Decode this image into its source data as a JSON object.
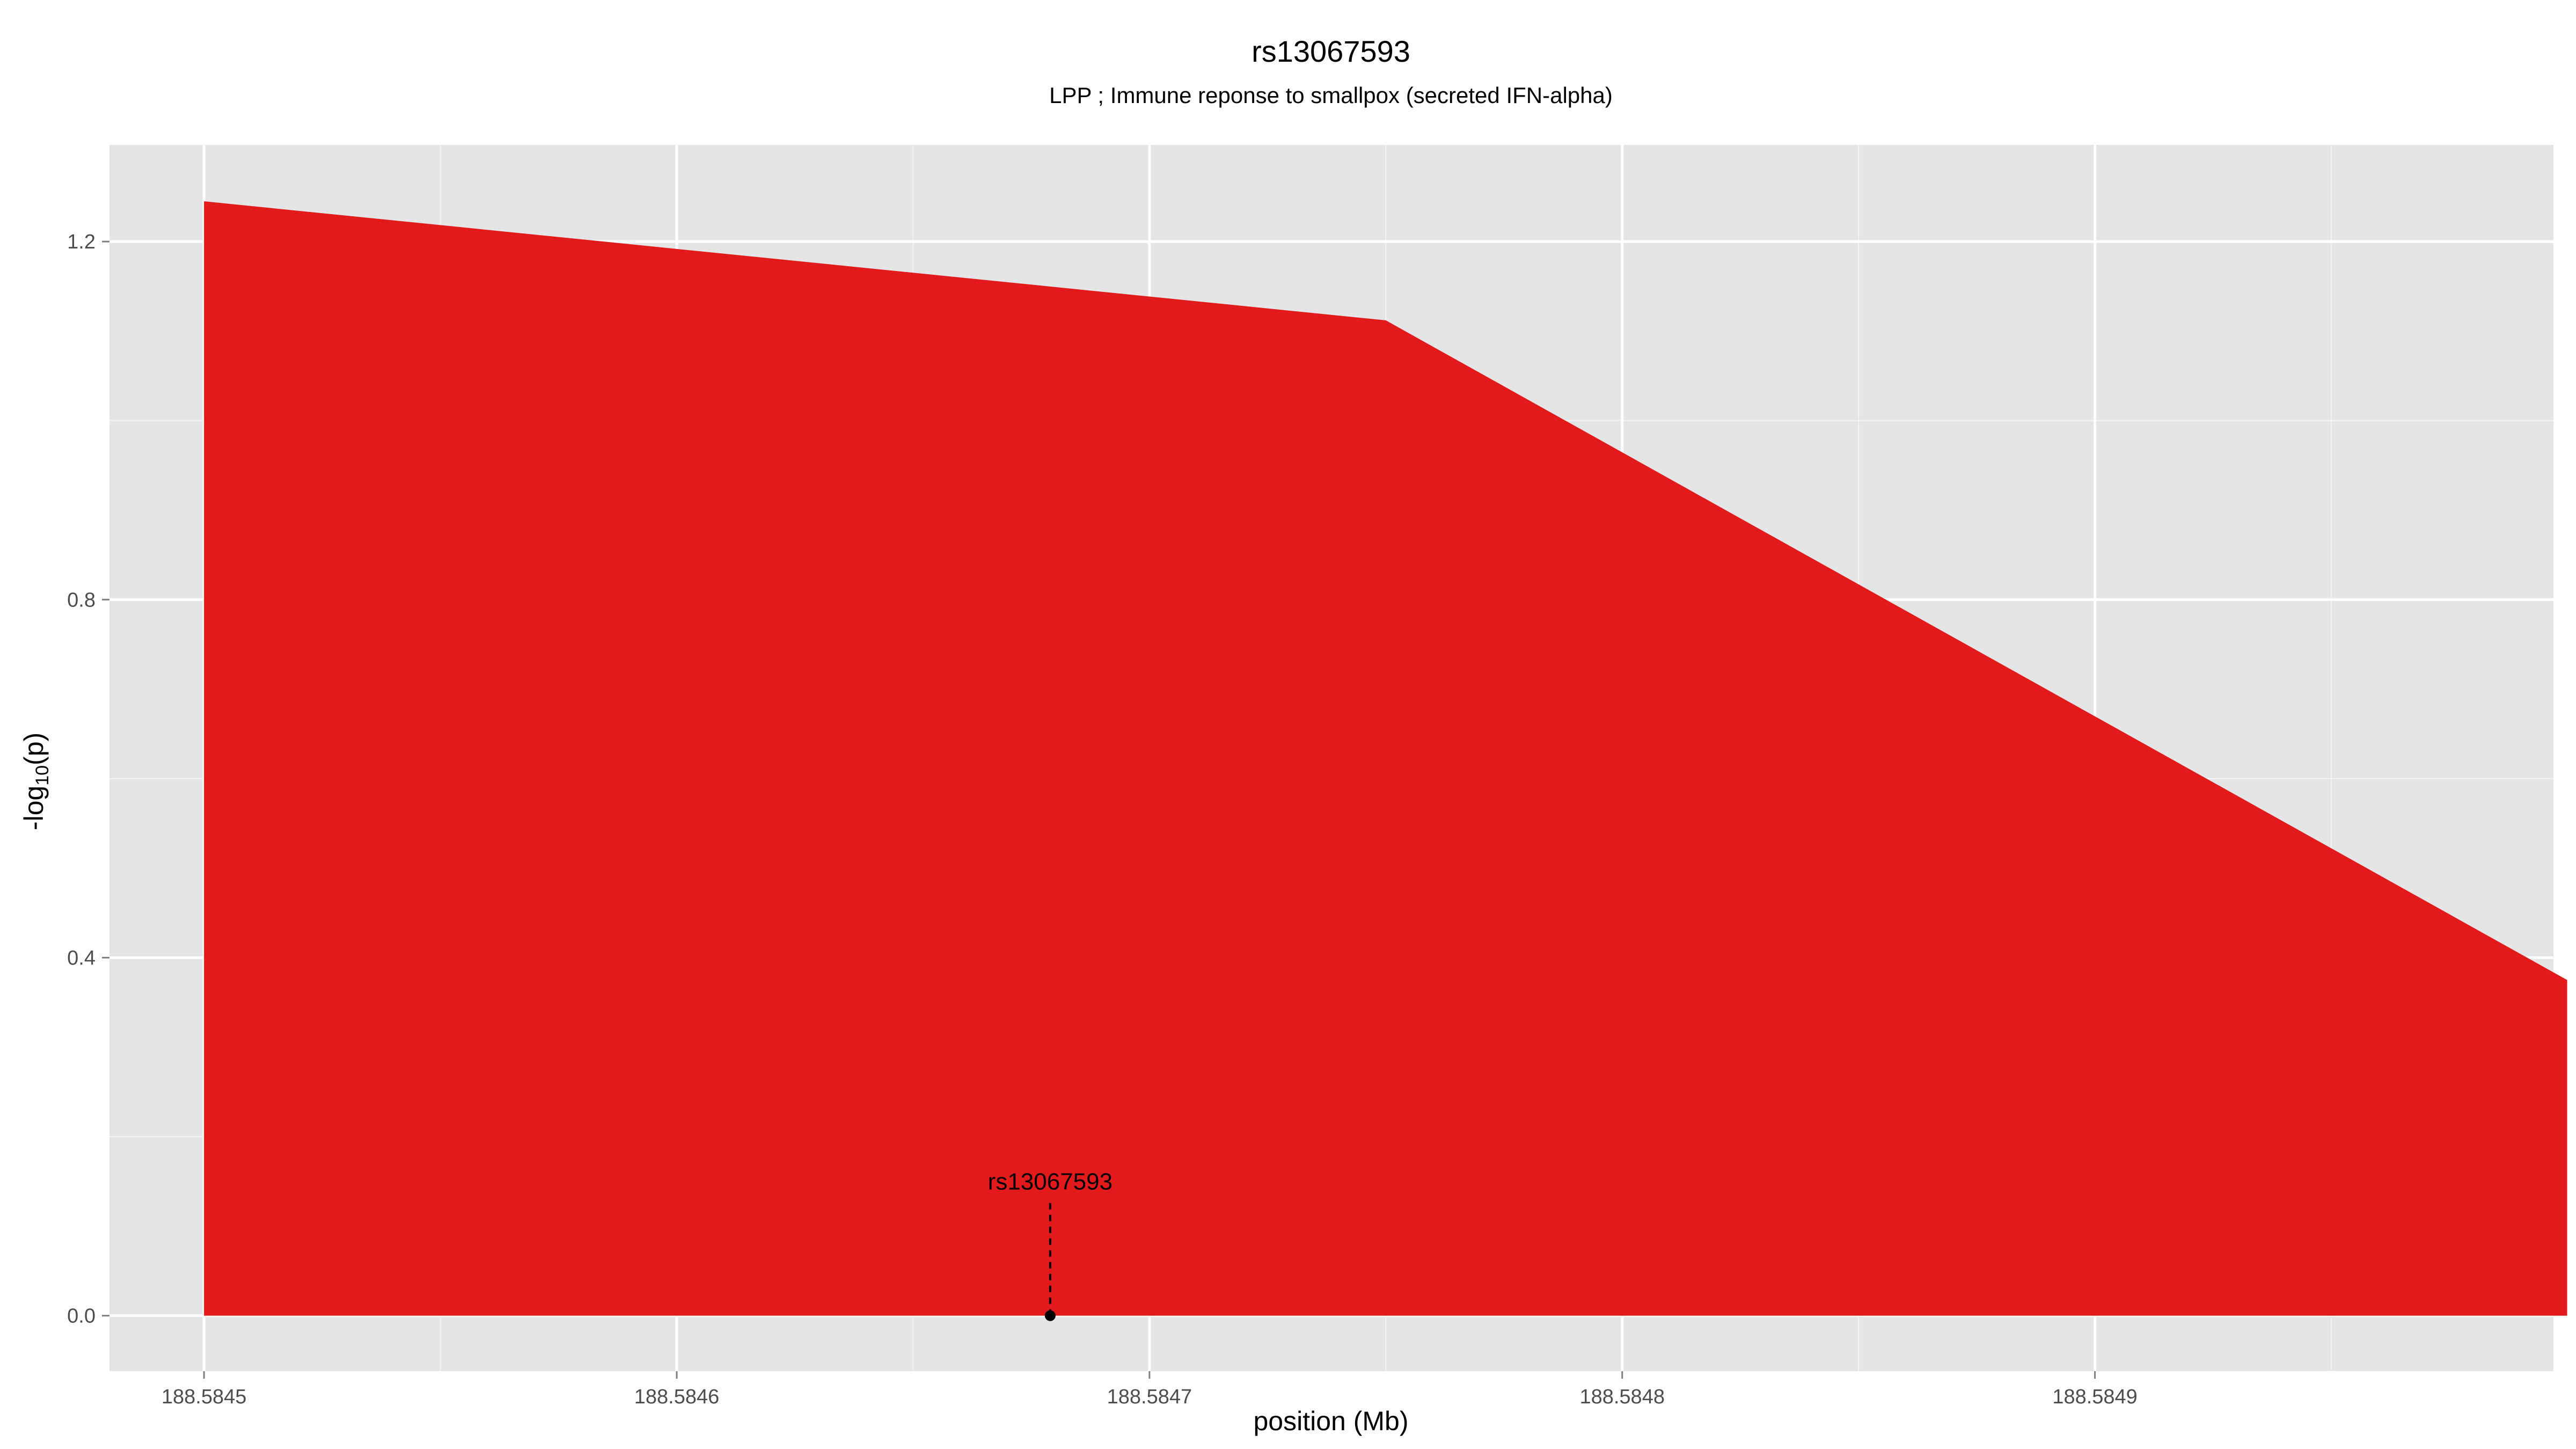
{
  "chart_data": {
    "type": "area",
    "title": "rs13067593",
    "subtitle": "LPP ; Immune reponse to smallpox (secreted IFN-alpha)",
    "xlabel": "position (Mb)",
    "ylabel": "-log10(p)",
    "ylabel_main": "-log",
    "ylabel_sub": "10",
    "ylabel_tail": "(p)",
    "xlim": [
      188.58448,
      188.584997
    ],
    "ylim": [
      -0.062,
      1.308
    ],
    "x_ticks": [
      188.5845,
      188.5846,
      188.5847,
      188.5848,
      188.5849
    ],
    "x_tick_labels": [
      "188.5845",
      "188.5846",
      "188.5847",
      "188.5848",
      "188.5849"
    ],
    "x_minor_ticks": [
      188.58455,
      188.58465,
      188.58475,
      188.58485,
      188.58495
    ],
    "y_ticks": [
      0.0,
      0.4,
      0.8,
      1.2
    ],
    "y_tick_labels": [
      "0.0",
      "0.4",
      "0.8",
      "1.2"
    ],
    "y_minor_ticks": [
      0.2,
      0.6,
      1.0
    ],
    "grid": true,
    "series": [
      {
        "color": "#e31a1c",
        "x": [
          188.5845,
          188.58475,
          188.5849999
        ],
        "y": [
          1.245,
          1.112,
          0.375
        ]
      }
    ],
    "annotations": [
      {
        "label": "rs13067593",
        "x": 188.584679,
        "y": 0.0
      }
    ],
    "panel_background": "#e5e5e5",
    "grid_color": "#ffffff"
  }
}
